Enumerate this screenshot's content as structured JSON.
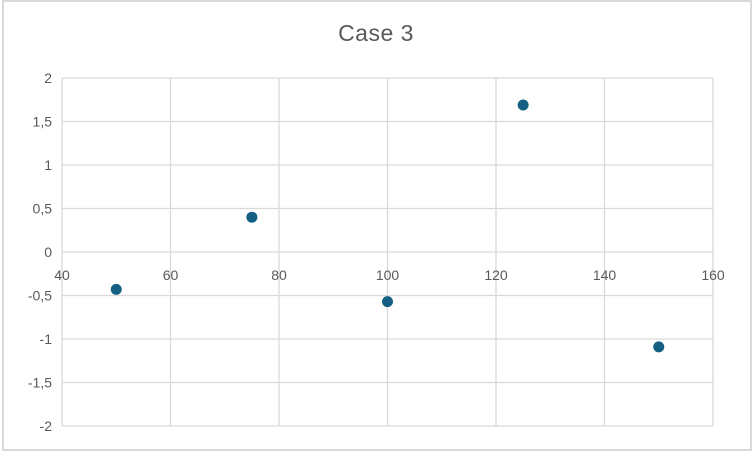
{
  "window": {
    "background_color": "#FFFFFF",
    "border_color": "#D9D9D9"
  },
  "chart_data": {
    "type": "scatter",
    "title": "Case 3",
    "xlabel": "",
    "ylabel": "",
    "x": [
      50,
      75,
      100,
      125,
      150
    ],
    "y": [
      -0.43,
      0.4,
      -0.57,
      1.69,
      -1.09
    ],
    "xlim": [
      40,
      160
    ],
    "ylim": [
      -2,
      2
    ],
    "x_ticks": {
      "values": [
        40,
        60,
        80,
        100,
        120,
        140,
        160
      ],
      "labels": [
        "40",
        "60",
        "80",
        "100",
        "120",
        "140",
        "160"
      ]
    },
    "y_ticks": {
      "values": [
        2,
        1.5,
        1,
        0.5,
        0,
        -0.5,
        -1,
        -1.5,
        -2
      ],
      "labels": [
        "2",
        "1,5",
        "1",
        "0,5",
        "0",
        "-0,5",
        "-1",
        "-1,5",
        "-2"
      ]
    },
    "grid": true,
    "legend": false,
    "decimal_separator": ",",
    "marker_color": "#156082",
    "marker_radius": 5.5,
    "gridline_color": "#D9D9D9",
    "tick_label_color": "#595959",
    "title_color": "#595959"
  }
}
